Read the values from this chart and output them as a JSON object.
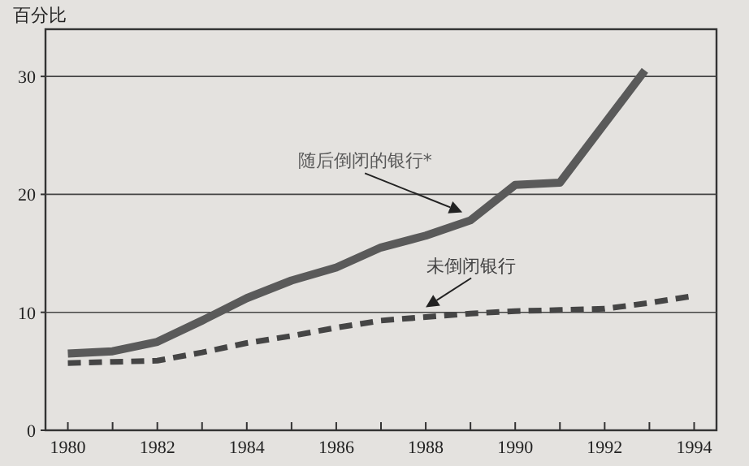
{
  "chart_data": {
    "type": "line",
    "ylabel": "百分比",
    "x": [
      1980,
      1981,
      1982,
      1983,
      1984,
      1985,
      1986,
      1987,
      1988,
      1989,
      1990,
      1991,
      1992.9
    ],
    "series": [
      {
        "name": "随后倒闭的银行*",
        "color": "#5a5a5a",
        "line_style": "solid",
        "values": [
          6.5,
          6.7,
          7.5,
          9.3,
          11.2,
          12.7,
          13.8,
          15.5,
          16.5,
          17.8,
          20.8,
          21,
          30.5
        ]
      },
      {
        "name": "未倒闭银行",
        "color": "#454545",
        "line_style": "dashed",
        "x": [
          1980,
          1981,
          1982,
          1983,
          1984,
          1985,
          1986,
          1987,
          1988,
          1989,
          1990,
          1991,
          1992,
          1993,
          1994
        ],
        "values": [
          5.7,
          5.8,
          5.9,
          6.6,
          7.4,
          8.0,
          8.7,
          9.3,
          9.6,
          9.9,
          10.1,
          10.2,
          10.3,
          10.8,
          11.4
        ]
      }
    ],
    "xlim": [
      1979.5,
      1994.5
    ],
    "ylim": [
      0,
      34
    ],
    "xticks": [
      1980,
      {
        "value": 1981,
        "label": null
      },
      1982,
      {
        "value": 1983,
        "label": null
      },
      1984,
      {
        "value": 1985,
        "label": null
      },
      1986,
      {
        "value": 1987,
        "label": null
      },
      1988,
      {
        "value": 1989,
        "label": null
      },
      1990,
      {
        "value": 1991,
        "label": null
      },
      1992,
      {
        "value": 1993,
        "label": null
      },
      1994
    ],
    "yticks": [
      0,
      10,
      20,
      30
    ],
    "grid": "y",
    "legend": false
  }
}
